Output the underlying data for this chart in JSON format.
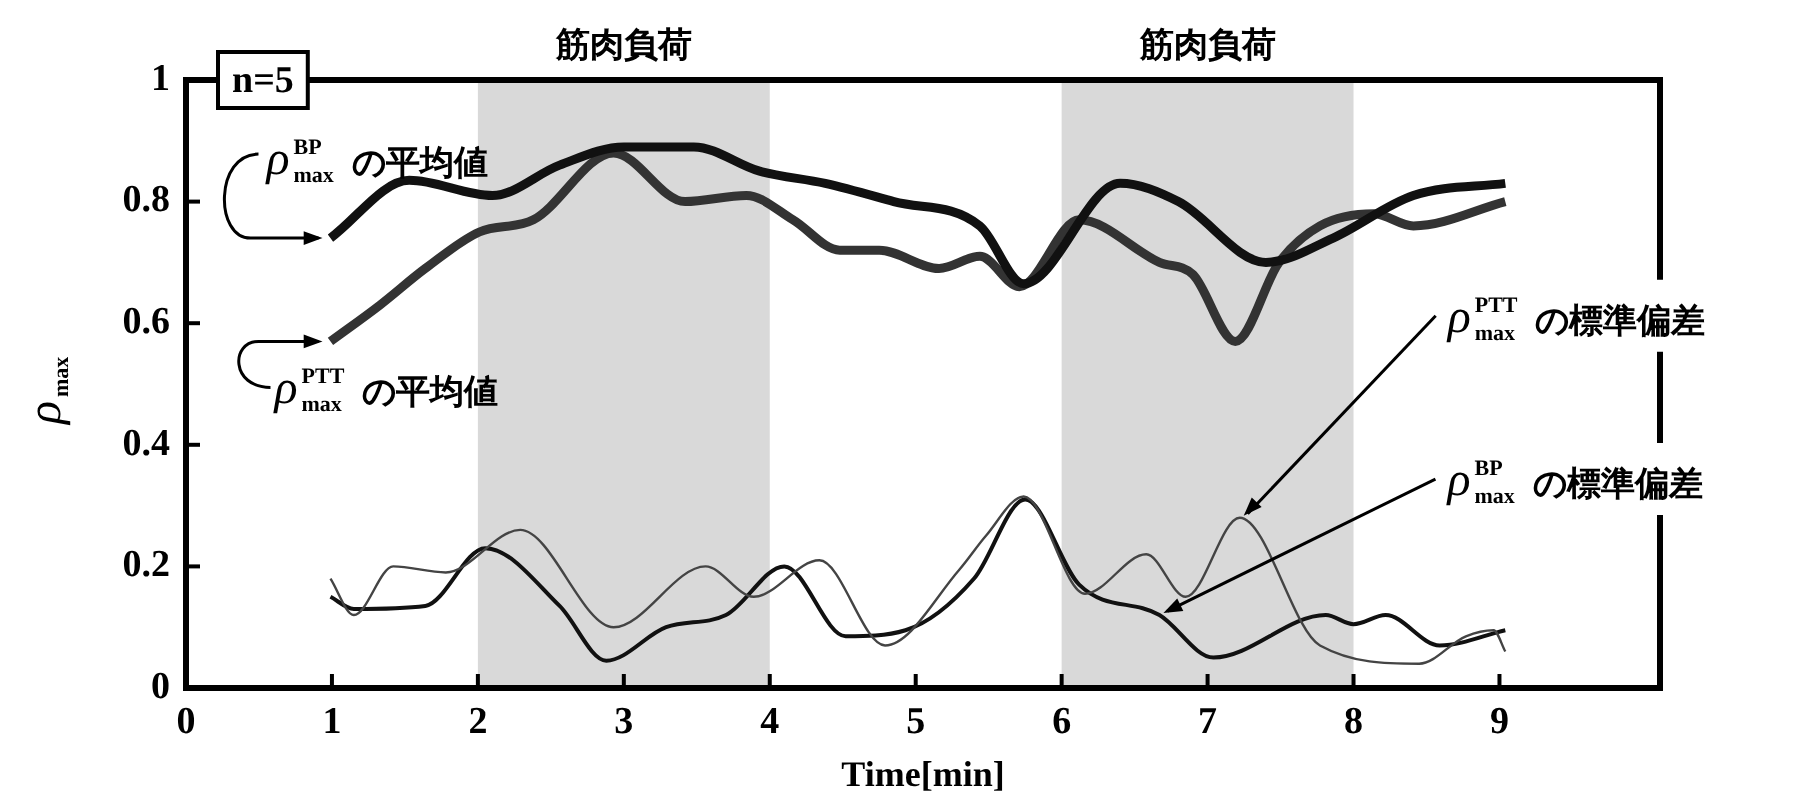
{
  "chart_data": {
    "type": "line",
    "xlabel": "Time[min]",
    "ylabel": "ρ$_{max}$",
    "annotations": [
      "n=5"
    ],
    "xlim": [
      0,
      10.1
    ],
    "ylim": [
      0,
      1
    ],
    "xticks": [
      0,
      1,
      2,
      3,
      4,
      5,
      6,
      7,
      8,
      9
    ],
    "yticks": [
      0,
      {
        "value": 0.2,
        "label": "0.2"
      },
      {
        "value": 0.4,
        "label": "0.4"
      },
      {
        "value": 0.6,
        "label": "0.6"
      },
      {
        "value": 0.8,
        "label": "0.8"
      },
      1
    ],
    "bands": [
      {
        "axis": "x",
        "from": 2,
        "to": 4,
        "label": "筋肉負荷",
        "color": "#d9d9d9"
      },
      {
        "axis": "x",
        "from": 6,
        "to": 8,
        "label": "筋肉負荷",
        "color": "#d9d9d9"
      }
    ],
    "series": [
      {
        "name": "ρ$^{BP}$$_{max}$ の平均値",
        "type": "line",
        "color": "#111111",
        "x": [
          0.99,
          1.53,
          2.1,
          2.56,
          3.0,
          3.48,
          3.93,
          4.38,
          4.85,
          5.44,
          5.74,
          6.4,
          6.8,
          7.4,
          7.86,
          8.41,
          9.04
        ],
        "values": [
          0.74,
          0.835,
          0.81,
          0.86,
          0.89,
          0.89,
          0.85,
          0.83,
          0.8,
          0.76,
          0.665,
          0.83,
          0.8,
          0.7,
          0.74,
          0.81,
          0.83
        ]
      },
      {
        "name": "ρ$^{PTT}$$_{max}$ の平均値",
        "type": "line",
        "color": "#333333",
        "x": [
          0.99,
          1.33,
          1.64,
          2.01,
          2.38,
          2.93,
          3.42,
          3.84,
          4.16,
          4.48,
          4.75,
          5.16,
          5.44,
          5.71,
          6.12,
          6.67,
          6.9,
          7.19,
          7.49,
          7.77,
          8.14,
          8.41,
          9.04
        ],
        "values": [
          0.57,
          0.63,
          0.69,
          0.75,
          0.77,
          0.88,
          0.8,
          0.81,
          0.77,
          0.72,
          0.72,
          0.69,
          0.71,
          0.66,
          0.77,
          0.7,
          0.68,
          0.57,
          0.7,
          0.76,
          0.78,
          0.76,
          0.8
        ]
      },
      {
        "name": "ρ$^{PTT}$$_{max}$ の標準偏差",
        "type": "line",
        "color": "#444444",
        "x": [
          0.99,
          1.15,
          1.42,
          1.78,
          2.29,
          2.93,
          3.56,
          3.89,
          4.34,
          4.79,
          5.3,
          5.48,
          5.74,
          6.16,
          6.58,
          6.85,
          7.22,
          7.77,
          8.45,
          8.77,
          8.96,
          9.04
        ],
        "values": [
          0.18,
          0.12,
          0.2,
          0.19,
          0.26,
          0.1,
          0.2,
          0.15,
          0.21,
          0.07,
          0.195,
          0.25,
          0.315,
          0.155,
          0.22,
          0.15,
          0.28,
          0.07,
          0.04,
          0.085,
          0.095,
          0.06
        ]
      },
      {
        "name": "ρ$^{BP}$$_{max}$ の標準偏差",
        "type": "line",
        "color": "#111111",
        "x": [
          0.99,
          1.15,
          1.64,
          2.05,
          2.56,
          2.88,
          3.29,
          3.7,
          4.1,
          4.52,
          4.93,
          5.4,
          5.75,
          6.12,
          6.67,
          7.04,
          7.81,
          8.0,
          8.22,
          8.59,
          9.04
        ],
        "values": [
          0.15,
          0.13,
          0.135,
          0.23,
          0.135,
          0.045,
          0.1,
          0.12,
          0.2,
          0.085,
          0.095,
          0.18,
          0.31,
          0.17,
          0.12,
          0.05,
          0.12,
          0.105,
          0.12,
          0.07,
          0.095
        ]
      }
    ]
  }
}
